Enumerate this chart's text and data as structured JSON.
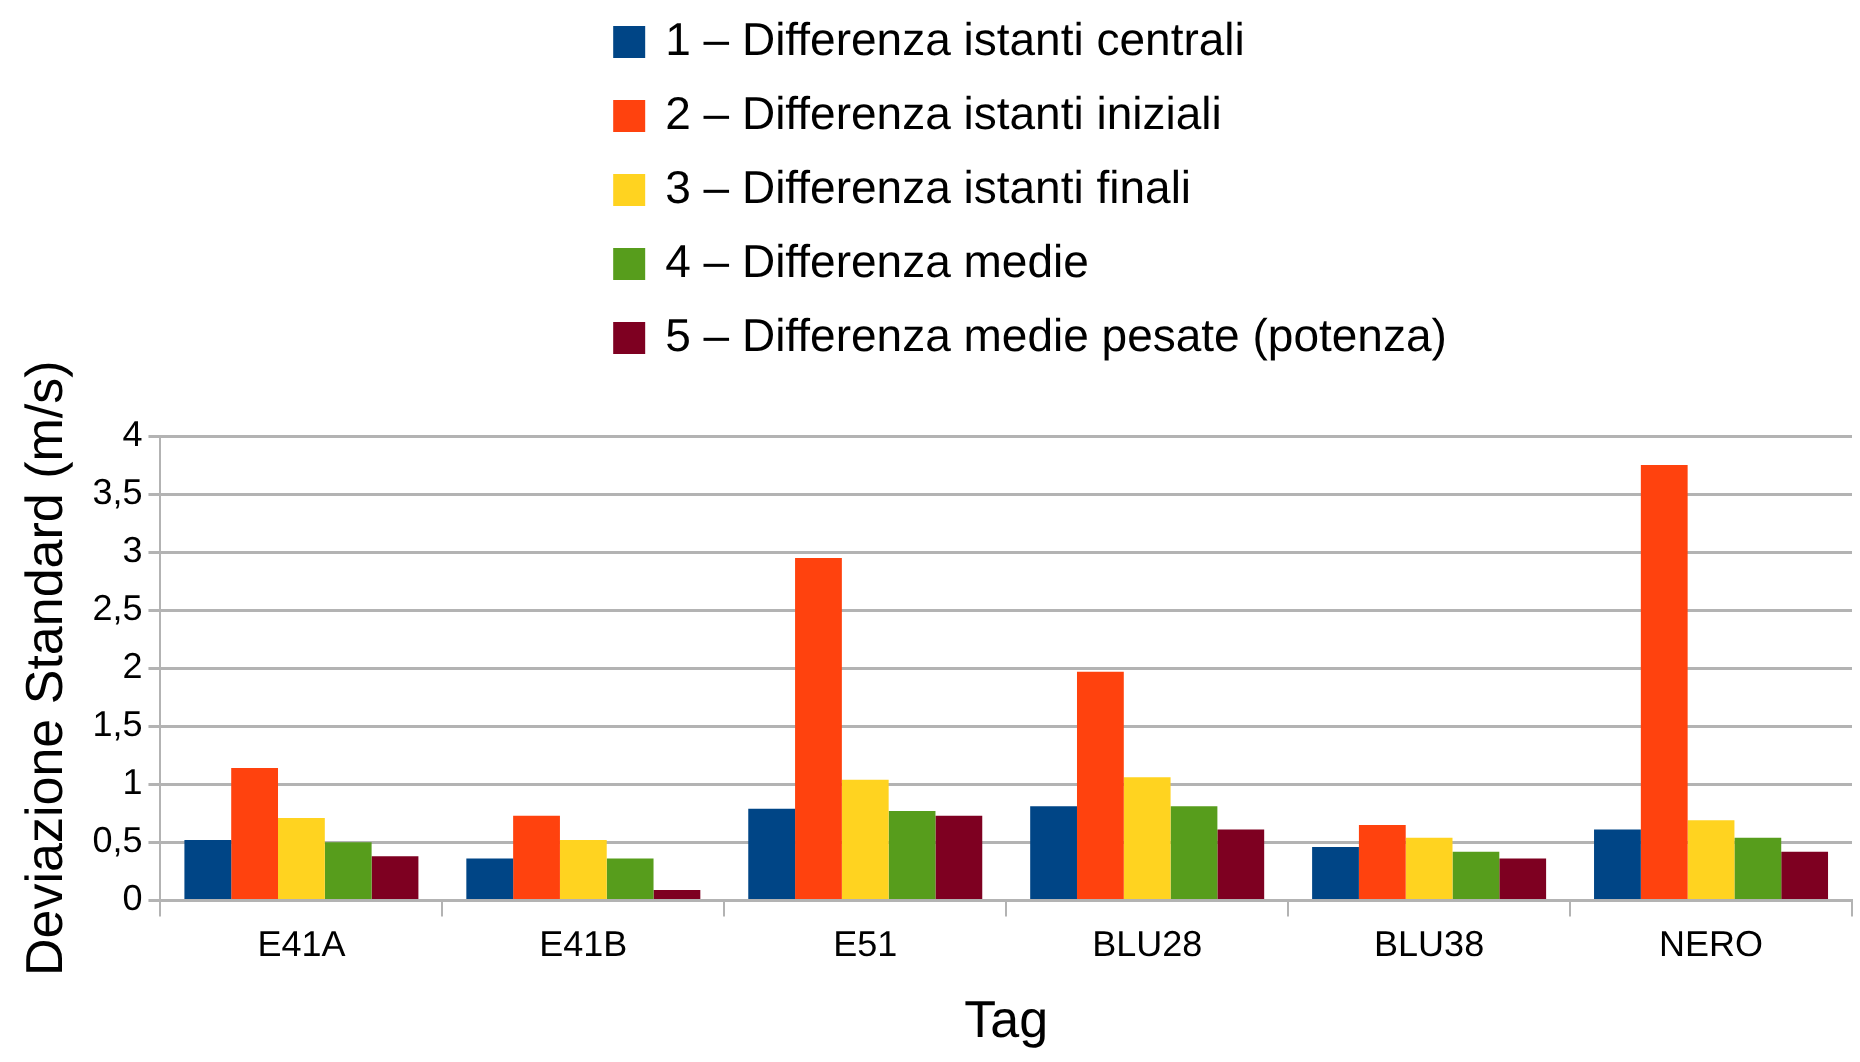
{
  "chart_data": {
    "type": "bar",
    "xlabel": "Tag",
    "ylabel": "Deviazione Standard (m/s)",
    "categories": [
      "E41A",
      "E41B",
      "E51",
      "BLU28",
      "BLU38",
      "NERO"
    ],
    "series": [
      {
        "name": "1 – Differenza istanti centrali",
        "color": "#004586",
        "values": [
          0.52,
          0.36,
          0.79,
          0.81,
          0.46,
          0.61
        ]
      },
      {
        "name": "2 – Differenza istanti iniziali",
        "color": "#ff420e",
        "values": [
          1.14,
          0.73,
          2.95,
          1.97,
          0.65,
          3.75
        ]
      },
      {
        "name": "3 – Differenza istanti finali",
        "color": "#ffd320",
        "values": [
          0.71,
          0.52,
          1.04,
          1.06,
          0.54,
          0.69
        ]
      },
      {
        "name": "4 – Differenza medie",
        "color": "#579d1c",
        "values": [
          0.5,
          0.36,
          0.77,
          0.81,
          0.42,
          0.54
        ]
      },
      {
        "name": "5 – Differenza medie pesate (potenza)",
        "color": "#7e0021",
        "values": [
          0.38,
          0.09,
          0.73,
          0.61,
          0.36,
          0.42
        ]
      }
    ],
    "ylim": [
      0,
      4
    ],
    "yticks": [
      0,
      {
        "value": 0.5,
        "label": "0,5"
      },
      1,
      {
        "value": 1.5,
        "label": "1,5"
      },
      2,
      {
        "value": 2.5,
        "label": "2,5"
      },
      3,
      {
        "value": 3.5,
        "label": "3,5"
      },
      4
    ],
    "grid": "y",
    "legend": "top"
  }
}
